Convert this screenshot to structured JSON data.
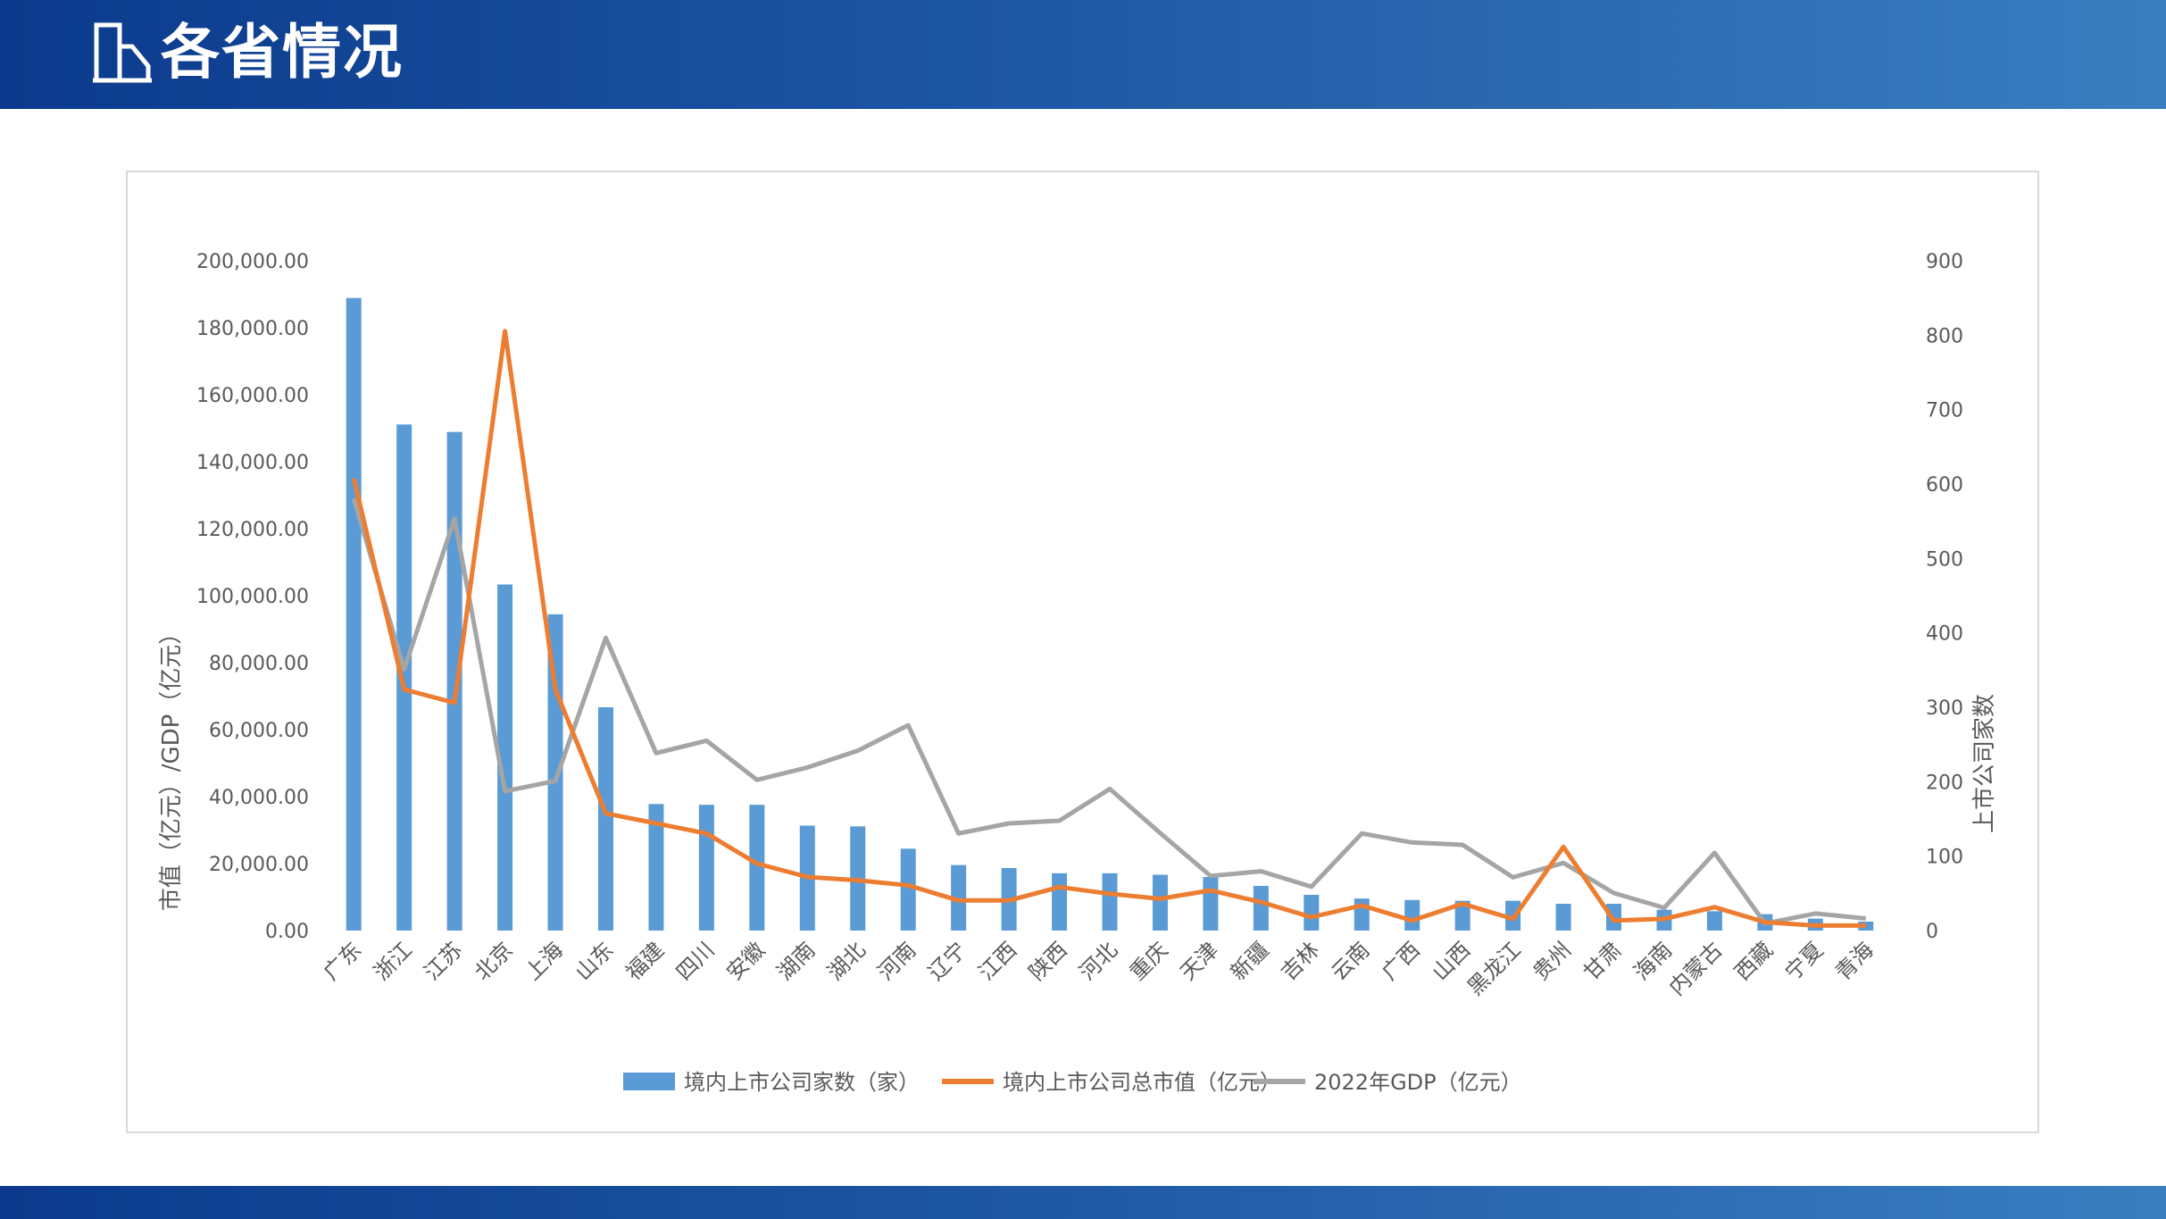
{
  "header": {
    "title": "各省情况",
    "icon": "document-icon"
  },
  "colors": {
    "bar": "#5b9bd5",
    "market_cap": "#ed7d31",
    "gdp": "#a5a5a5",
    "header_start": "#0b3a8c",
    "header_end": "#3a7ec0"
  },
  "chart_data": {
    "type": "bar",
    "categories": [
      "广东",
      "浙江",
      "江苏",
      "北京",
      "上海",
      "山东",
      "福建",
      "四川",
      "安徽",
      "湖南",
      "湖北",
      "河南",
      "辽宁",
      "江西",
      "陕西",
      "河北",
      "重庆",
      "天津",
      "新疆",
      "吉林",
      "云南",
      "广西",
      "山西",
      "黑龙江",
      "贵州",
      "甘肃",
      "海南",
      "内蒙古",
      "西藏",
      "宁夏",
      "青海"
    ],
    "series": [
      {
        "name": "境内上市公司家数（家）",
        "type": "bar",
        "axis": "right",
        "values": [
          850,
          680,
          670,
          465,
          425,
          300,
          170,
          169,
          169,
          141,
          140,
          110,
          88,
          84,
          77,
          77,
          75,
          72,
          60,
          48,
          43,
          41,
          40,
          40,
          36,
          36,
          28,
          26,
          22,
          16,
          12
        ]
      },
      {
        "name": "境内上市公司总市值（亿元）",
        "type": "line",
        "axis": "left",
        "values": [
          135000,
          72000,
          68000,
          179000,
          72000,
          35000,
          32000,
          29000,
          20000,
          16000,
          15000,
          13500,
          9000,
          9000,
          13000,
          11000,
          9500,
          12000,
          8500,
          4000,
          7500,
          3000,
          8000,
          3500,
          25000,
          3000,
          3500,
          7000,
          2500,
          1500,
          1500
        ]
      },
      {
        "name": "2022年GDP（亿元）",
        "type": "line",
        "axis": "left",
        "values": [
          129000,
          78000,
          123000,
          41600,
          44700,
          87400,
          53000,
          56700,
          45000,
          48700,
          53700,
          61300,
          29000,
          32000,
          32800,
          42300,
          29100,
          16300,
          17700,
          13100,
          29000,
          26300,
          25600,
          15900,
          20200,
          11200,
          6800,
          23200,
          2100,
          5100,
          3600
        ]
      }
    ],
    "left_axis": {
      "label": "市值（亿元）/GDP（亿元）",
      "min": 0,
      "max": 200000,
      "ticks": [
        "0.00",
        "20,000.00",
        "40,000.00",
        "60,000.00",
        "80,000.00",
        "100,000.00",
        "120,000.00",
        "140,000.00",
        "160,000.00",
        "180,000.00",
        "200,000.00"
      ]
    },
    "right_axis": {
      "label": "上市公司家数",
      "min": 0,
      "max": 900,
      "ticks": [
        "0",
        "100",
        "200",
        "300",
        "400",
        "500",
        "600",
        "700",
        "800",
        "900"
      ]
    },
    "legend_position": "bottom",
    "grid": false
  }
}
